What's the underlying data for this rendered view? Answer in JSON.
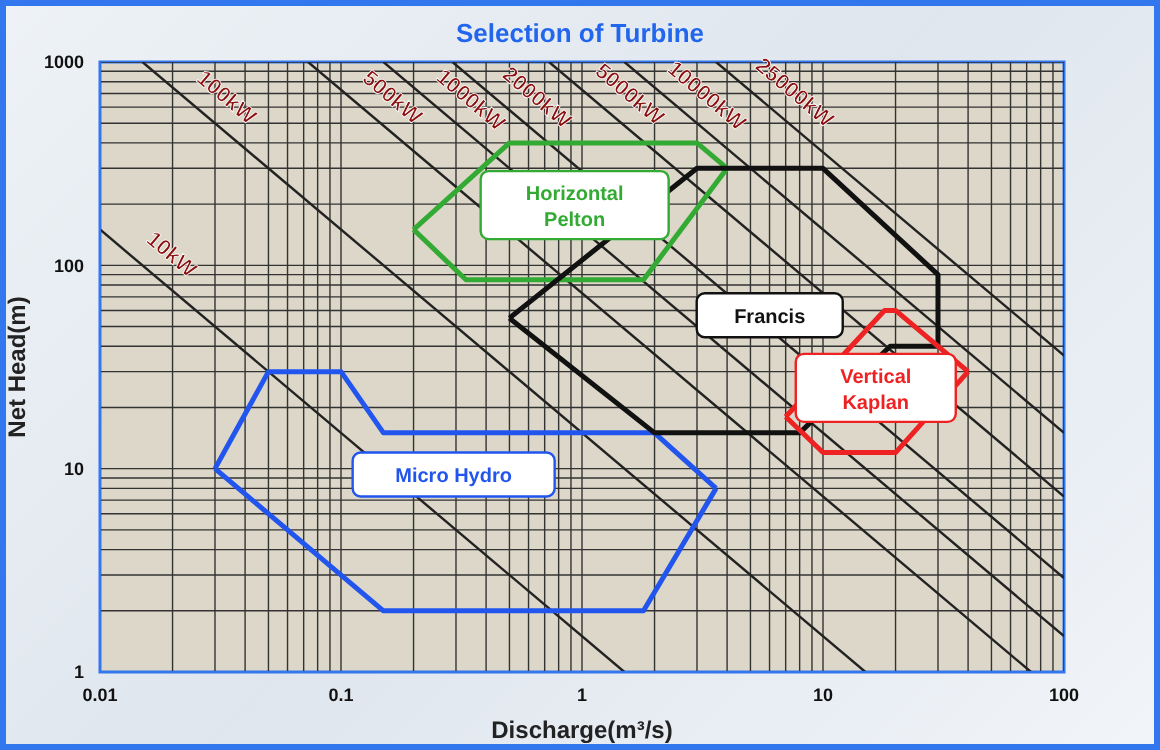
{
  "chart_data": {
    "type": "line",
    "title": "Selection of Turbine",
    "xlabel": "Discharge(m³/s)",
    "ylabel": "Net Head(m)",
    "log": "xy",
    "grid": true,
    "legend": false,
    "marker": "none",
    "line_style": "solid",
    "xlim": [
      0.01,
      100
    ],
    "ylim": [
      1,
      1000
    ],
    "xticks": [
      0.01,
      0.1,
      1,
      10,
      100
    ],
    "yticks": [
      1,
      10,
      100,
      1000
    ],
    "series": [
      {
        "name": "10kW",
        "color": "#222222",
        "x": [
          0.01,
          1.5
        ],
        "values": [
          150,
          1
        ]
      },
      {
        "name": "100kW",
        "color": "#222222",
        "x": [
          0.015,
          15
        ],
        "values": [
          1000,
          1
        ]
      },
      {
        "name": "500kW",
        "color": "#222222",
        "x": [
          0.073,
          73
        ],
        "values": [
          1000,
          1
        ]
      },
      {
        "name": "1000kW",
        "color": "#222222",
        "x": [
          0.15,
          100
        ],
        "values": [
          1000,
          1.5
        ]
      },
      {
        "name": "2000kW",
        "color": "#222222",
        "x": [
          0.29,
          100
        ],
        "values": [
          1000,
          2.9
        ]
      },
      {
        "name": "5000kW",
        "color": "#222222",
        "x": [
          0.73,
          100
        ],
        "values": [
          1000,
          7.3
        ]
      },
      {
        "name": "10000kW",
        "color": "#222222",
        "x": [
          1.5,
          100
        ],
        "values": [
          1000,
          15
        ]
      },
      {
        "name": "25000kW",
        "color": "#222222",
        "x": [
          3.6,
          100
        ],
        "values": [
          1000,
          36
        ]
      },
      {
        "name": "Micro Hydro",
        "color": "#2255ee",
        "x": [
          0.03,
          0.05,
          0.1,
          0.15,
          2,
          3.6
        ],
        "values": [
          10,
          30,
          30,
          15,
          15,
          8
        ]
      },
      {
        "color": "#2255ee",
        "x": [
          0.03,
          0.15,
          1.8,
          3.6
        ],
        "values": [
          10,
          2,
          2,
          8
        ]
      },
      {
        "name": "Horizontal Pelton",
        "color": "#33aa33",
        "x": [
          0.2,
          0.5,
          3,
          4
        ],
        "values": [
          150,
          400,
          400,
          300
        ]
      },
      {
        "color": "#33aa33",
        "x": [
          0.2,
          0.33,
          1.8,
          4
        ],
        "values": [
          150,
          85,
          85,
          300
        ]
      },
      {
        "name": "Francis",
        "color": "#111111",
        "x": [
          0.5,
          3,
          10,
          30,
          30
        ],
        "values": [
          55,
          300,
          300,
          90,
          40
        ]
      },
      {
        "color": "#111111",
        "x": [
          0.5,
          2,
          8,
          19,
          30
        ],
        "values": [
          55,
          15,
          15,
          40,
          40
        ]
      },
      {
        "name": "Vertical Kaplan",
        "color": "#ee2222",
        "x": [
          7,
          18,
          20,
          40
        ],
        "values": [
          18,
          60,
          60,
          30
        ]
      },
      {
        "color": "#ee2222",
        "x": [
          7,
          10,
          20,
          40
        ],
        "values": [
          18,
          12,
          12,
          30
        ]
      }
    ]
  }
}
